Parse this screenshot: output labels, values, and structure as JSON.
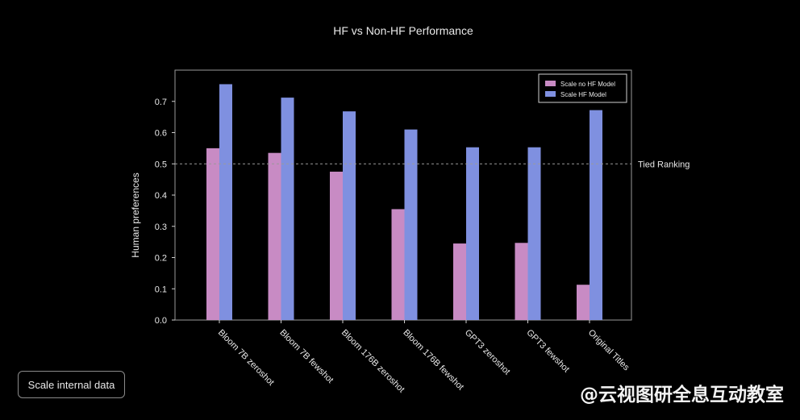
{
  "chart_data": {
    "type": "bar",
    "title": "HF vs Non-HF Performance",
    "xlabel": "",
    "ylabel": "Human preferences",
    "ylim": [
      0,
      0.8
    ],
    "yticks": [
      0.0,
      0.1,
      0.2,
      0.3,
      0.4,
      0.5,
      0.6,
      0.7
    ],
    "ytick_labels": [
      "0.0",
      "0.1",
      "0.2",
      "0.3",
      "0.4",
      "0.5",
      "0.6",
      "0.7"
    ],
    "categories": [
      "Bloom 7B zeroshot",
      "Bloom 7B fewshot",
      "Bloom 176B zeroshot",
      "Bloom 176B fewshot",
      "GPT3 zeroshot",
      "GPT3 fewshot",
      "Original Titles"
    ],
    "series": [
      {
        "name": "Scale no HF Model",
        "color": "#c88bc4",
        "values": [
          0.55,
          0.535,
          0.475,
          0.355,
          0.245,
          0.247,
          0.113
        ]
      },
      {
        "name": "Scale HF Model",
        "color": "#7f90e0",
        "values": [
          0.755,
          0.712,
          0.668,
          0.61,
          0.553,
          0.553,
          0.672
        ]
      }
    ],
    "reference_line": {
      "value": 0.5,
      "label": "Tied Ranking",
      "style": "dashed"
    },
    "legend_position": "top-right",
    "grid": false
  },
  "note": {
    "label": "Scale internal data"
  },
  "watermark": {
    "text": "@云视图研全息互动教室"
  }
}
